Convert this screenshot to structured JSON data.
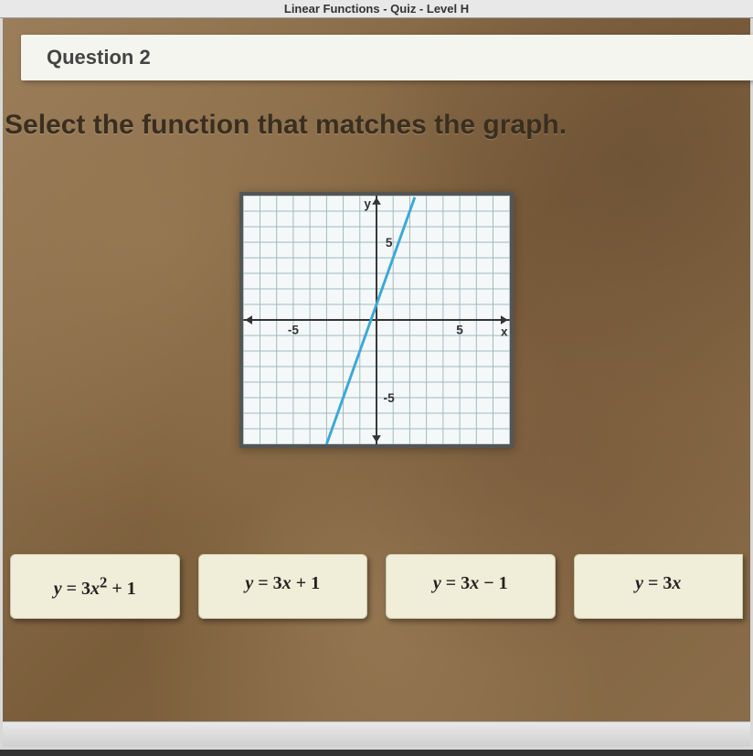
{
  "titleBar": "Linear Functions - Quiz - Level H",
  "questionTab": "Question 2",
  "prompt": "Select the function that matches the graph.",
  "graph": {
    "type": "line",
    "xlim": [
      -8,
      8
    ],
    "ylim": [
      -8,
      8
    ],
    "xtick_labels": {
      "-5": "-5",
      "5": "5"
    },
    "ytick_labels": {
      "5": "5",
      "-5": "-5"
    },
    "x_axis_label": "x",
    "y_axis_label": "y",
    "grid_step": 1,
    "background_color": "#f4f8f8",
    "grid_color": "#a0b8c0",
    "axis_color": "#333333",
    "axis_width": 2,
    "line": {
      "slope": 3,
      "intercept": 1,
      "color": "#3aa8d8",
      "width": 3,
      "x_start": -3,
      "x_end": 2.3
    },
    "label_fontsize": 14,
    "label_color": "#333333"
  },
  "answers": [
    {
      "label": "y = 3x² + 1",
      "value": "y=3x^2+1"
    },
    {
      "label": "y = 3x + 1",
      "value": "y=3x+1"
    },
    {
      "label": "y = 3x − 1",
      "value": "y=3x-1"
    },
    {
      "label": "y = 3x",
      "value": "y=3x"
    }
  ],
  "colors": {
    "tab_bg": "#f5f5f0",
    "parchment": "#8a6d4a",
    "answer_bg": "#f0edd8"
  }
}
